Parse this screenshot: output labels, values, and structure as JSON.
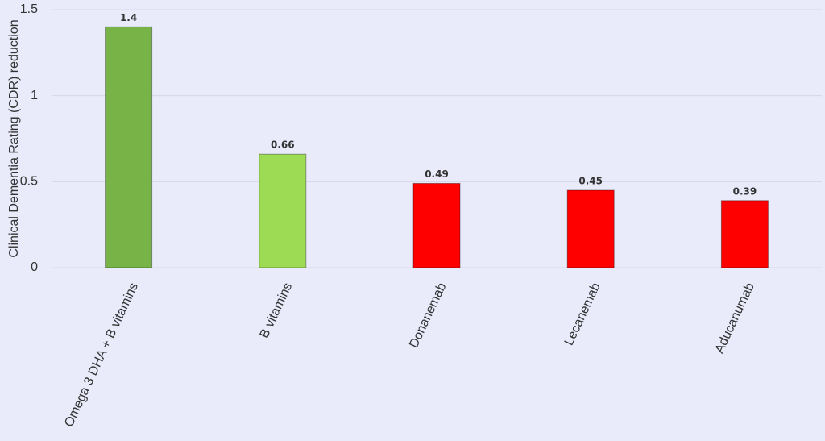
{
  "chart_data": {
    "type": "bar",
    "y_label": "Clinical Dementia Rating (CDR) reduction",
    "categories": [
      "Omega 3 DHA + B vitamins",
      "B vitamins",
      "Donanemab",
      "Lecanemab",
      "Aducanumab"
    ],
    "values": [
      1.4,
      0.66,
      0.49,
      0.45,
      0.39
    ],
    "colors": [
      "#77b347",
      "#9ddb55",
      "#ff0000",
      "#ff0000",
      "#ff0000"
    ],
    "ylim": [
      0,
      1.5
    ],
    "yticks": [
      0,
      0.5,
      1,
      1.5
    ],
    "grid": true
  }
}
